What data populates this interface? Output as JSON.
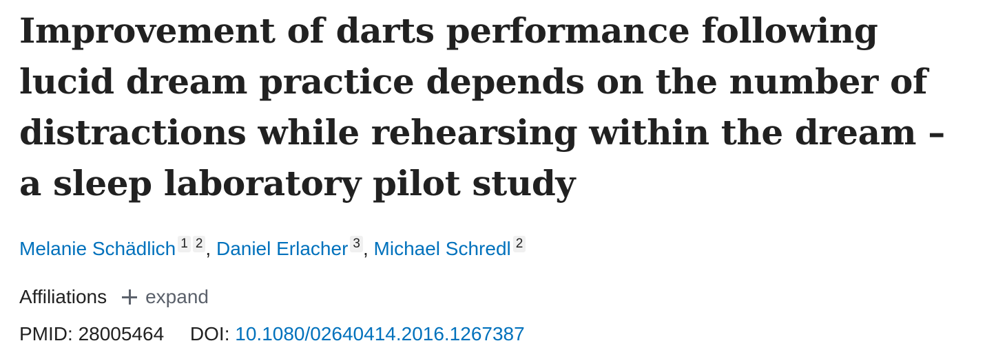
{
  "article": {
    "title": "Improvement of darts performance following lucid dream practice depends on the number of distractions while rehearsing within the dream – a sleep laboratory pilot study",
    "authors": [
      {
        "name": "Melanie Schädlich",
        "affiliations": [
          "1",
          "2"
        ]
      },
      {
        "name": "Daniel Erlacher",
        "affiliations": [
          "3"
        ]
      },
      {
        "name": "Michael Schredl",
        "affiliations": [
          "2"
        ]
      }
    ],
    "separator": ", "
  },
  "affiliations": {
    "label": "Affiliations",
    "expand_label": "expand"
  },
  "identifiers": {
    "pmid_label": "PMID:",
    "pmid": "28005464",
    "doi_label": "DOI:",
    "doi": "10.1080/02640414.2016.1267387"
  },
  "colors": {
    "link": "#0071bc",
    "text": "#212121",
    "muted": "#5b616b",
    "badge_bg": "#f0f0f0"
  },
  "icons": {
    "expand": "plus-icon"
  }
}
